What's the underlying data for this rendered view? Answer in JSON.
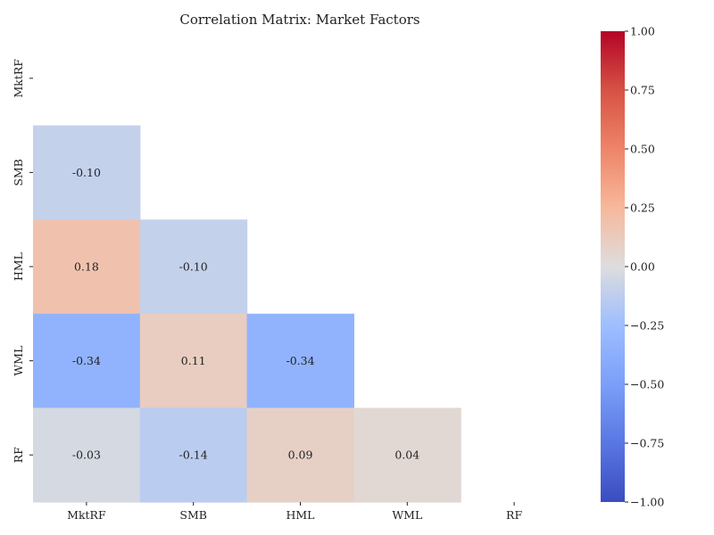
{
  "chart_data": {
    "type": "heatmap",
    "title": "Correlation Matrix: Market Factors",
    "xlabel": "",
    "ylabel": "",
    "row_labels": [
      "MktRF",
      "SMB",
      "HML",
      "WML",
      "RF"
    ],
    "col_labels": [
      "MktRF",
      "SMB",
      "HML",
      "WML",
      "RF"
    ],
    "mask": "upper triangle including diagonal",
    "cells": [
      {
        "row": 1,
        "col": 0,
        "value": -0.1,
        "label": "-0.10"
      },
      {
        "row": 2,
        "col": 0,
        "value": 0.18,
        "label": "0.18"
      },
      {
        "row": 2,
        "col": 1,
        "value": -0.1,
        "label": "-0.10"
      },
      {
        "row": 3,
        "col": 0,
        "value": -0.34,
        "label": "-0.34"
      },
      {
        "row": 3,
        "col": 1,
        "value": 0.11,
        "label": "0.11"
      },
      {
        "row": 3,
        "col": 2,
        "value": -0.34,
        "label": "-0.34"
      },
      {
        "row": 4,
        "col": 0,
        "value": -0.03,
        "label": "-0.03"
      },
      {
        "row": 4,
        "col": 1,
        "value": -0.14,
        "label": "-0.14"
      },
      {
        "row": 4,
        "col": 2,
        "value": 0.09,
        "label": "0.09"
      },
      {
        "row": 4,
        "col": 3,
        "value": 0.04,
        "label": "0.04"
      }
    ],
    "colorbar": {
      "colormap": "coolwarm",
      "vmin": -1.0,
      "vmax": 1.0,
      "ticks": [
        1.0,
        0.75,
        0.5,
        0.25,
        0.0,
        -0.25,
        -0.5,
        -0.75,
        -1.0
      ],
      "tick_labels": [
        "1.00",
        "0.75",
        "0.50",
        "0.25",
        "0.00",
        "−0.25",
        "−0.50",
        "−0.75",
        "−1.00"
      ]
    }
  }
}
